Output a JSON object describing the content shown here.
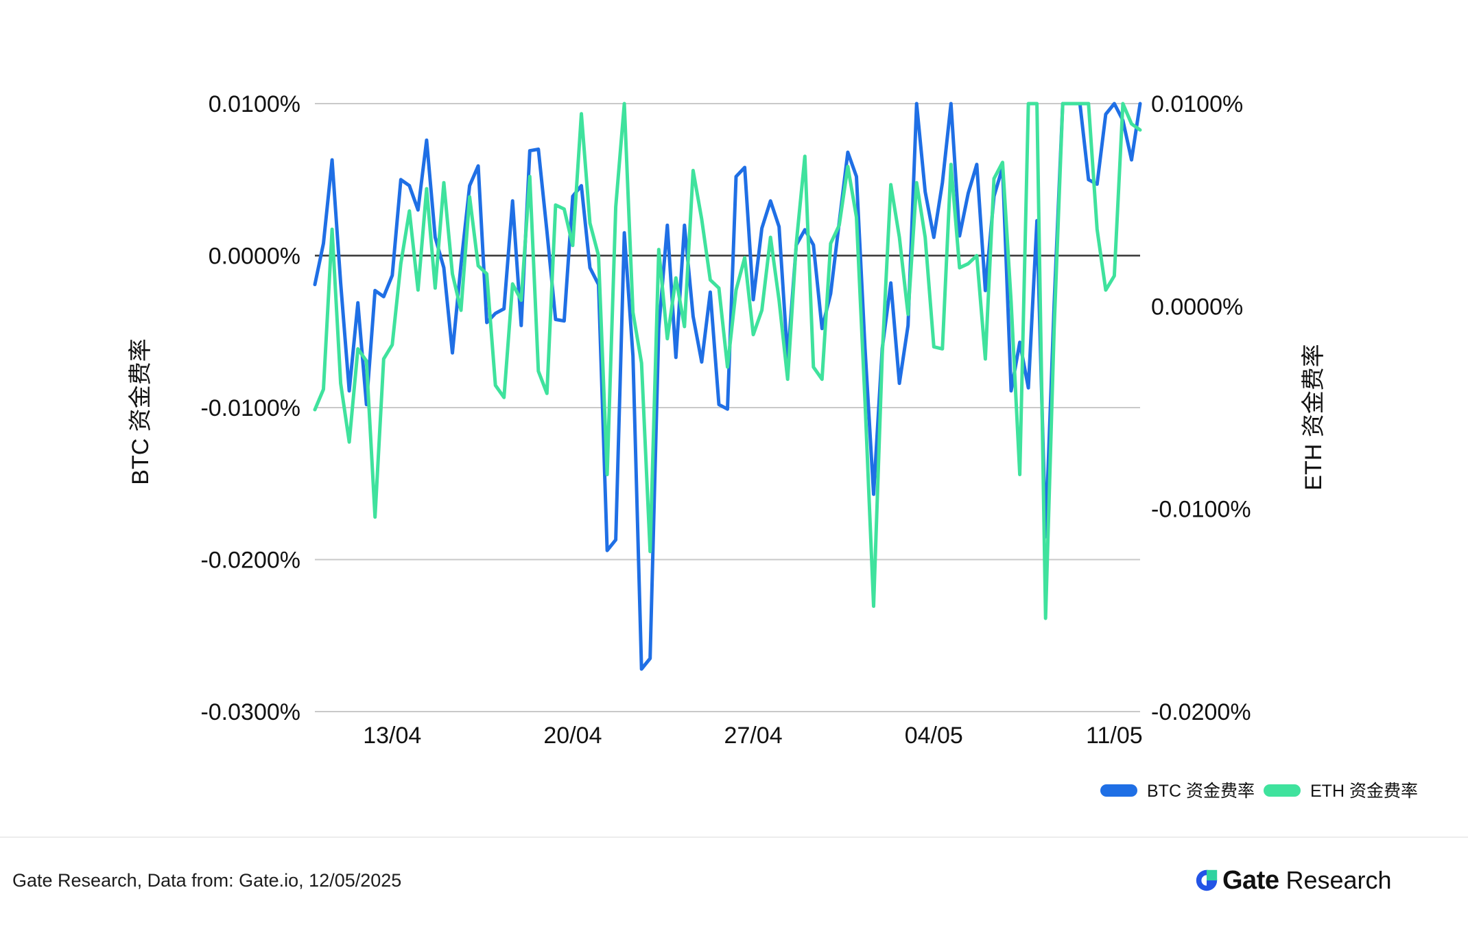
{
  "footer": {
    "source": "Gate Research, Data from: Gate.io, 12/05/2025",
    "brand_name": "Gate",
    "brand_suffix": "Research",
    "brand_color": "#2354e6"
  },
  "chart_data": {
    "type": "line",
    "title": "",
    "y_left_label": "BTC  资金费率",
    "y_right_label": "ETH 资金费率",
    "y_left_lim": [
      -0.03,
      0.01
    ],
    "y_left_ticks": [
      "0.0100%",
      "0.0000%",
      "-0.0100%",
      "-0.0200%",
      "-0.0300%"
    ],
    "y_left_tick_values": [
      0.01,
      0.0,
      -0.01,
      -0.02,
      -0.03
    ],
    "y_right_lim": [
      -0.02,
      0.01
    ],
    "y_right_ticks": [
      "0.0100%",
      "0.0000%",
      "-0.0100%",
      "-0.0200%"
    ],
    "y_right_tick_values": [
      0.01,
      0.0,
      -0.01,
      -0.02
    ],
    "x_ticks": [
      {
        "label": "13/04",
        "index": 9
      },
      {
        "label": "20/04",
        "index": 30
      },
      {
        "label": "27/04",
        "index": 51
      },
      {
        "label": "04/05",
        "index": 72
      },
      {
        "label": "11/05",
        "index": 93
      }
    ],
    "x_count": 97,
    "grid": true,
    "zero_line": true,
    "legend_position": "bottom-right",
    "series": [
      {
        "name": "BTC 资金费率",
        "axis": "left",
        "color": "#1f6fe5",
        "values": [
          -0.0019,
          0.0008,
          0.0063,
          -0.0018,
          -0.0089,
          -0.0031,
          -0.0098,
          -0.0023,
          -0.0027,
          -0.0013,
          0.005,
          0.0046,
          0.003,
          0.0076,
          0.0012,
          -0.0008,
          -0.0064,
          -0.0006,
          0.0046,
          0.0059,
          -0.0044,
          -0.0038,
          -0.0035,
          0.0036,
          -0.0046,
          0.0069,
          0.007,
          0.0016,
          -0.0042,
          -0.0043,
          0.0039,
          0.0046,
          -0.0008,
          -0.0019,
          -0.0194,
          -0.0187,
          0.0015,
          -0.0066,
          -0.0272,
          -0.0265,
          -0.0048,
          0.002,
          -0.0067,
          0.002,
          -0.004,
          -0.007,
          -0.0024,
          -0.0098,
          -0.0101,
          0.0052,
          0.0058,
          -0.0029,
          0.0018,
          0.0036,
          0.0019,
          -0.0068,
          0.0007,
          0.0017,
          0.0007,
          -0.0048,
          -0.0025,
          0.0022,
          0.0068,
          0.0052,
          -0.0061,
          -0.0157,
          -0.0061,
          -0.0018,
          -0.0084,
          -0.0046,
          0.01,
          0.0042,
          0.0012,
          0.0048,
          0.01,
          0.0013,
          0.0041,
          0.006,
          -0.0023,
          0.0039,
          0.0058,
          -0.0089,
          -0.0057,
          -0.0087,
          0.0023,
          -0.0185,
          -0.0032,
          0.01,
          0.01,
          0.01,
          0.005,
          0.0047,
          0.0093,
          0.01,
          0.0089,
          0.0063,
          0.01
        ]
      },
      {
        "name": "ETH 资金费率",
        "axis": "right",
        "color": "#3fe29d",
        "values": [
          -0.0051,
          -0.0041,
          0.0038,
          -0.0038,
          -0.0067,
          -0.0021,
          -0.0027,
          -0.0104,
          -0.0026,
          -0.0019,
          0.0021,
          0.0047,
          0.0008,
          0.0058,
          0.0009,
          0.0061,
          0.0016,
          -0.0002,
          0.0054,
          0.002,
          0.0016,
          -0.0039,
          -0.0045,
          0.0011,
          0.0003,
          0.0064,
          -0.0032,
          -0.0043,
          0.005,
          0.0048,
          0.003,
          0.0095,
          0.0041,
          0.0025,
          -0.0083,
          0.0049,
          0.01,
          -0.0003,
          -0.0028,
          -0.0121,
          0.0028,
          -0.0016,
          0.0014,
          -0.001,
          0.0067,
          0.0043,
          0.0013,
          0.0009,
          -0.003,
          0.0008,
          0.0024,
          -0.0014,
          -0.0002,
          0.0034,
          0.0003,
          -0.0036,
          0.0031,
          0.0074,
          -0.003,
          -0.0036,
          0.0031,
          0.004,
          0.0069,
          0.0044,
          -0.0047,
          -0.0148,
          -0.0024,
          0.006,
          0.0034,
          -0.0004,
          0.0061,
          0.0034,
          -0.002,
          -0.0021,
          0.007,
          0.0019,
          0.0021,
          0.0025,
          -0.0026,
          0.0063,
          0.0071,
          0.0002,
          -0.0083,
          0.01,
          0.01,
          -0.0154,
          -0.0011,
          0.01,
          0.01,
          0.01,
          0.01,
          0.0038,
          0.0008,
          0.0015,
          0.01,
          0.009,
          0.0087
        ]
      }
    ]
  }
}
